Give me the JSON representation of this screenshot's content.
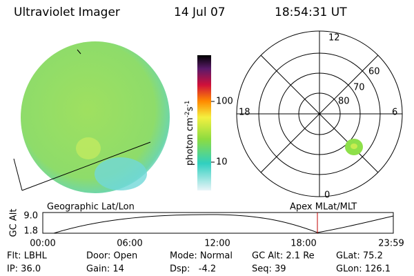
{
  "header": {
    "title": "Ultraviolet Imager",
    "date": "14 Jul 07",
    "time": "18:54:31 UT"
  },
  "colorbar": {
    "label": [
      "photon cm",
      "-2",
      "s",
      "-1"
    ],
    "ticks": [
      "100",
      "10"
    ]
  },
  "polar": {
    "mlt": [
      "12",
      "18",
      "6",
      "0"
    ],
    "mlat": [
      "60",
      "70",
      "80"
    ]
  },
  "timeline": {
    "left_title": "Geographic Lat/Lon",
    "right_title": "Apex MLat/MLT",
    "axis_label": "GC Alt",
    "alt_max": "9.0",
    "alt_min": "1.8",
    "times": [
      "00:00",
      "06:00",
      "12:00",
      "18:00",
      "23:59"
    ]
  },
  "info": {
    "row1": [
      "Flt: LBHL",
      "Door: Open",
      "Mode: Normal",
      "GC Alt: 2.1 Re",
      "GLat: 75.2"
    ],
    "row2": [
      "IP: 36.0",
      "Gain: 14",
      "Dsp:   -4.2",
      "Seq: 39",
      "GLon: 126.1"
    ]
  }
}
